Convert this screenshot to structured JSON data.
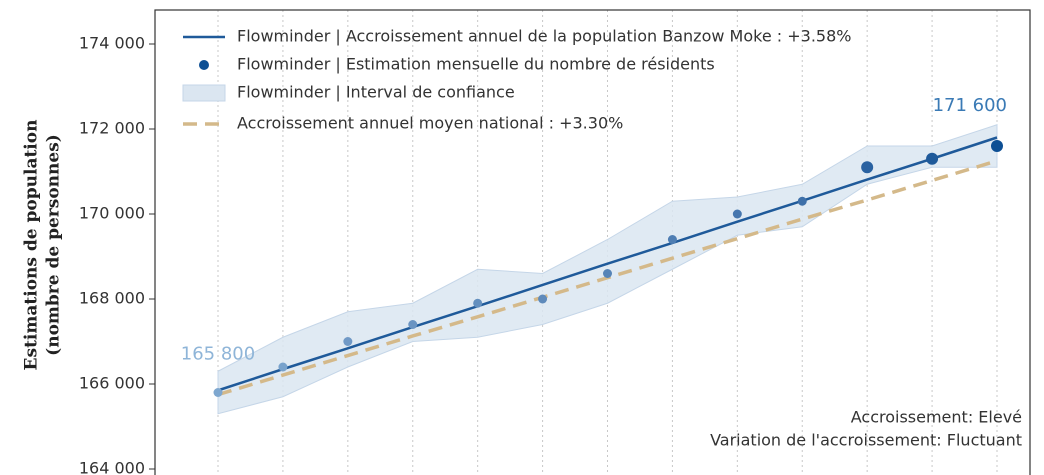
{
  "chart_data": {
    "type": "line",
    "ylabel": [
      "Estimations de population",
      "(nombre de personnes)"
    ],
    "categories": [
      null,
      null,
      null,
      null,
      null,
      null,
      null,
      null,
      null,
      null,
      null,
      null,
      null
    ],
    "ylim": [
      163800,
      174800
    ],
    "yticks": [
      {
        "value": 164000,
        "label": "164 000"
      },
      {
        "value": 166000,
        "label": "166 000"
      },
      {
        "value": 168000,
        "label": "168 000"
      },
      {
        "value": 170000,
        "label": "170 000"
      },
      {
        "value": 172000,
        "label": "172 000"
      },
      {
        "value": 174000,
        "label": "174 000"
      }
    ],
    "grid": true,
    "legend": "top-left",
    "series": [
      {
        "name": "Flowminder | Accroissement annuel de la population Banzow Moke : +3.58%",
        "kind": "line",
        "color": "#1f5a9a",
        "values": [
          165850,
          166350,
          166840,
          167340,
          167830,
          168330,
          168830,
          169320,
          169820,
          170310,
          170810,
          171300,
          171800
        ]
      },
      {
        "name": "Flowminder | Estimation mensuelle du nombre de résidents",
        "kind": "points",
        "color": "#0d4f94",
        "colors": [
          "#7ea7cf",
          "#78a2cc",
          "#7099c6",
          "#6a94c2",
          "#6490bf",
          "#5e8abb",
          "#5684b7",
          "#4f7eb3",
          "#4676ae",
          "#3e70a9",
          "#2a62a1",
          "#1f5a9a",
          "#0d4f94"
        ],
        "values": [
          165800,
          166400,
          167000,
          167400,
          167900,
          168000,
          168600,
          169400,
          170000,
          170300,
          171100,
          171300,
          171600
        ],
        "value_labels": [
          "165 800",
          null,
          null,
          null,
          null,
          null,
          null,
          null,
          null,
          null,
          null,
          null,
          "171 600"
        ],
        "label_colors": [
          "#8fb5d8",
          null,
          null,
          null,
          null,
          null,
          null,
          null,
          null,
          null,
          null,
          null,
          "#3a7ab5"
        ]
      },
      {
        "name": "Flowminder | Interval de confiance",
        "kind": "band",
        "color": "#dbe6f1",
        "upper": [
          166300,
          167100,
          167700,
          167900,
          168700,
          168600,
          169400,
          170300,
          170400,
          170700,
          171600,
          171600,
          172100
        ],
        "lower": [
          165300,
          165700,
          166400,
          167000,
          167100,
          167400,
          167900,
          168700,
          169500,
          169700,
          170700,
          171100,
          171100
        ]
      },
      {
        "name": "Accroissement annuel moyen national : +3.30%",
        "kind": "dashed",
        "color": "#d4b98a",
        "values": [
          165750,
          166210,
          166670,
          167130,
          167580,
          168040,
          168500,
          168960,
          169420,
          169880,
          170330,
          170790,
          171250
        ]
      }
    ],
    "annotations": [
      "Accroissement: Elevé",
      "Variation de l'accroissement: Fluctuant"
    ]
  }
}
